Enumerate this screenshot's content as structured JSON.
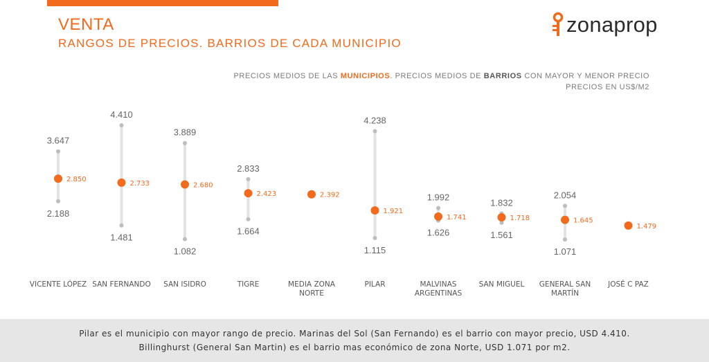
{
  "header": {
    "title": "VENTA",
    "subtitle": "RANGOS DE PRECIOS. BARRIOS DE CADA MUNICIPIO",
    "logo_text": "zonaprop",
    "note_part1": "PRECIOS MEDIOS DE LAS ",
    "note_highlight1": "MUNICIPIOS",
    "note_part2": ". PRECIOS MEDIOS DE ",
    "note_highlight2": "BARRIOS",
    "note_part3": " CON MAYOR Y MENOR PRECIO",
    "note_line2": "PRECIOS EN US$/M2"
  },
  "colors": {
    "accent": "#f26a1b",
    "range_line": "#e3e3e3",
    "range_point": "#bdbdbd",
    "text_gray": "#666666"
  },
  "chart_data": {
    "type": "scatter",
    "categories": [
      "VICENTE LÓPEZ",
      "SAN FERNANDO",
      "SAN ISIDRO",
      "TIGRE",
      "MEDIA ZONA NORTE",
      "PILAR",
      "MALVINAS ARGENTINAS",
      "SAN MIGUEL",
      "GENERAL SAN MARTÍN",
      "JOSÉ C PAZ"
    ],
    "category_lines": [
      [
        "VICENTE LÓPEZ"
      ],
      [
        "SAN FERNANDO"
      ],
      [
        "SAN ISIDRO"
      ],
      [
        "TIGRE"
      ],
      [
        "MEDIA ZONA",
        "NORTE"
      ],
      [
        "PILAR"
      ],
      [
        "MALVINAS",
        "ARGENTINAS"
      ],
      [
        "SAN MIGUEL"
      ],
      [
        "GENERAL SAN",
        "MARTÍN"
      ],
      [
        "JOSÉ C PAZ"
      ]
    ],
    "mean": [
      2850,
      2733,
      2680,
      2423,
      2392,
      1921,
      1741,
      1718,
      1645,
      1479
    ],
    "mean_labels": [
      "2.850",
      "2.733",
      "2.680",
      "2.423",
      "2.392",
      "1.921",
      "1.741",
      "1.718",
      "1.645",
      "1.479"
    ],
    "max": [
      3647,
      4410,
      3889,
      2833,
      null,
      4238,
      1992,
      1832,
      2054,
      null
    ],
    "max_labels": [
      "3.647",
      "4.410",
      "3.889",
      "2.833",
      null,
      "4.238",
      "1.992",
      "1.832",
      "2.054",
      null
    ],
    "min": [
      2188,
      1481,
      1082,
      1664,
      null,
      1115,
      1626,
      1561,
      1071,
      null
    ],
    "min_labels": [
      "2.188",
      "1.481",
      "1.082",
      "1.664",
      null,
      "1.115",
      "1.626",
      "1.561",
      "1.071",
      null
    ],
    "ylim": [
      1000,
      4500
    ]
  },
  "footer": {
    "line1": "Pilar es el municipio con mayor rango de precio. Marinas del Sol (San Fernando) es el barrio con mayor precio, USD 4.410.",
    "line2": "Billinghurst (General San Martin) es el barrio mas económico de zona Norte, USD 1.071 por m2."
  }
}
